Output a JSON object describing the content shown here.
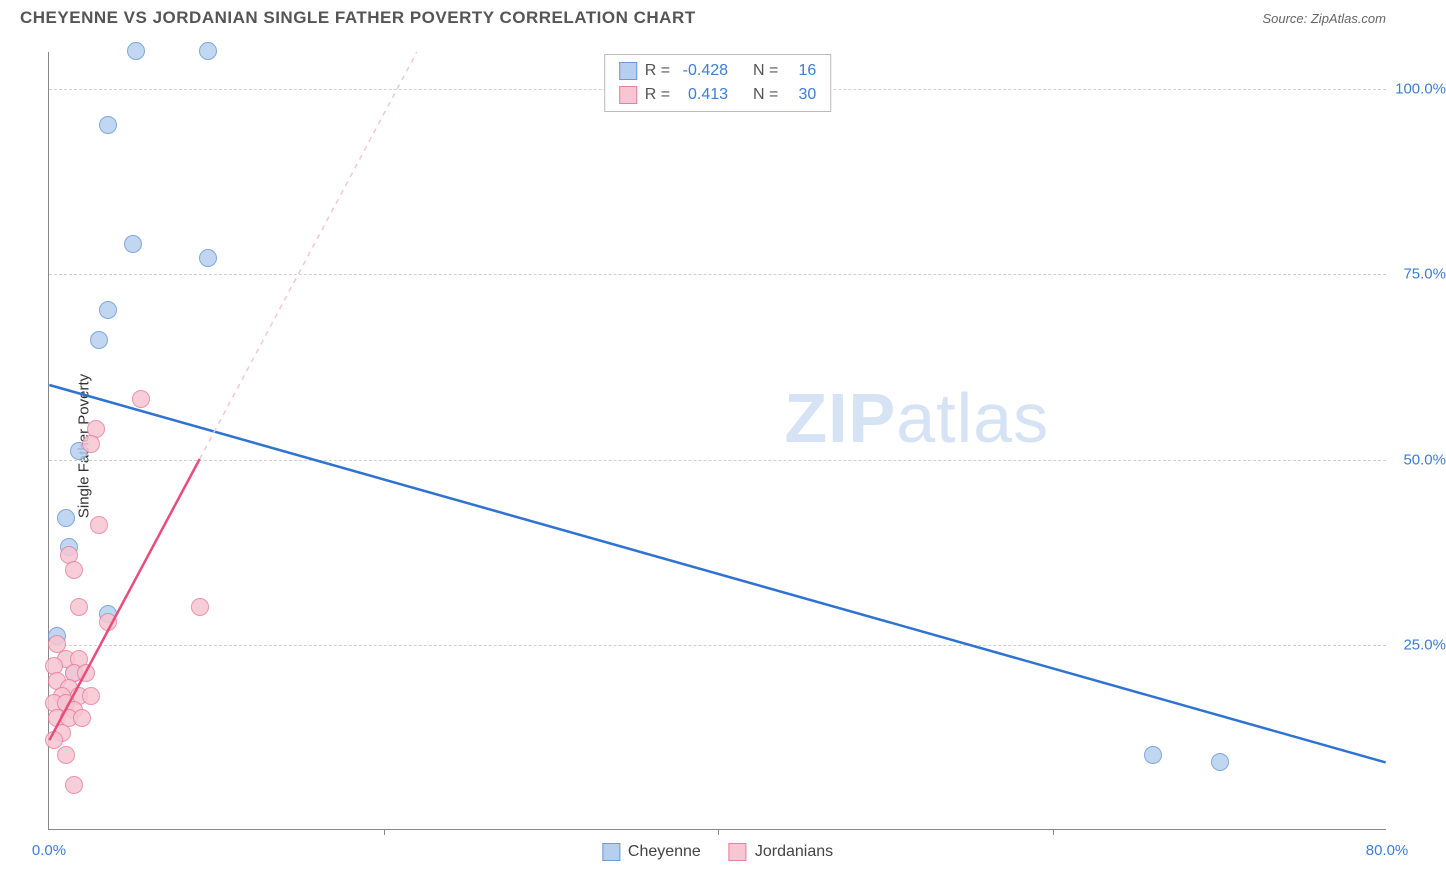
{
  "header": {
    "title": "CHEYENNE VS JORDANIAN SINGLE FATHER POVERTY CORRELATION CHART",
    "source_prefix": "Source: ",
    "source_name": "ZipAtlas.com"
  },
  "chart": {
    "type": "scatter",
    "y_axis_label": "Single Father Poverty",
    "background_color": "#ffffff",
    "grid_color": "#d0d0d0",
    "axis_color": "#888888",
    "xlim": [
      0,
      80
    ],
    "ylim": [
      0,
      105
    ],
    "y_ticks": [
      {
        "value": 25,
        "label": "25.0%"
      },
      {
        "value": 50,
        "label": "50.0%"
      },
      {
        "value": 75,
        "label": "75.0%"
      },
      {
        "value": 100,
        "label": "100.0%"
      }
    ],
    "x_ticks_minor": [
      20,
      40,
      60
    ],
    "x_ticks_labeled": [
      {
        "value": 0,
        "label": "0.0%"
      },
      {
        "value": 80,
        "label": "80.0%"
      }
    ],
    "watermark": {
      "zip": "ZIP",
      "atlas": "atlas",
      "color": "#d5e3f5"
    },
    "series": [
      {
        "name": "Cheyenne",
        "fill": "#b7cfee",
        "stroke": "#6a9ad6",
        "marker_radius": 9,
        "points": [
          {
            "x": 5.2,
            "y": 105
          },
          {
            "x": 9.5,
            "y": 105
          },
          {
            "x": 3.5,
            "y": 95
          },
          {
            "x": 5.0,
            "y": 79
          },
          {
            "x": 9.5,
            "y": 77
          },
          {
            "x": 3.5,
            "y": 70
          },
          {
            "x": 3.0,
            "y": 66
          },
          {
            "x": 1.8,
            "y": 51
          },
          {
            "x": 1.0,
            "y": 42
          },
          {
            "x": 1.2,
            "y": 38
          },
          {
            "x": 3.5,
            "y": 29
          },
          {
            "x": 0.5,
            "y": 26
          },
          {
            "x": 1.5,
            "y": 21
          },
          {
            "x": 1.0,
            "y": 17
          },
          {
            "x": 66,
            "y": 10
          },
          {
            "x": 70,
            "y": 9
          }
        ],
        "trend": {
          "x1": 0,
          "y1": 60,
          "x2": 80,
          "y2": 9,
          "color": "#2e72d2",
          "width": 2.5,
          "dash": "none"
        },
        "trend_ext": null
      },
      {
        "name": "Jordanians",
        "fill": "#f6c6d2",
        "stroke": "#e97fa0",
        "marker_radius": 9,
        "points": [
          {
            "x": 5.5,
            "y": 58
          },
          {
            "x": 2.8,
            "y": 54
          },
          {
            "x": 2.5,
            "y": 52
          },
          {
            "x": 3.0,
            "y": 41
          },
          {
            "x": 1.2,
            "y": 37
          },
          {
            "x": 1.5,
            "y": 35
          },
          {
            "x": 1.8,
            "y": 30
          },
          {
            "x": 9.0,
            "y": 30
          },
          {
            "x": 3.5,
            "y": 28
          },
          {
            "x": 0.5,
            "y": 25
          },
          {
            "x": 1.0,
            "y": 23
          },
          {
            "x": 1.8,
            "y": 23
          },
          {
            "x": 0.3,
            "y": 22
          },
          {
            "x": 1.5,
            "y": 21
          },
          {
            "x": 2.2,
            "y": 21
          },
          {
            "x": 0.5,
            "y": 20
          },
          {
            "x": 1.2,
            "y": 19
          },
          {
            "x": 0.8,
            "y": 18
          },
          {
            "x": 1.8,
            "y": 18
          },
          {
            "x": 2.5,
            "y": 18
          },
          {
            "x": 0.3,
            "y": 17
          },
          {
            "x": 1.0,
            "y": 17
          },
          {
            "x": 1.5,
            "y": 16
          },
          {
            "x": 0.5,
            "y": 15
          },
          {
            "x": 1.2,
            "y": 15
          },
          {
            "x": 2.0,
            "y": 15
          },
          {
            "x": 0.8,
            "y": 13
          },
          {
            "x": 0.3,
            "y": 12
          },
          {
            "x": 1.0,
            "y": 10
          },
          {
            "x": 1.5,
            "y": 6
          }
        ],
        "trend": {
          "x1": 0,
          "y1": 12,
          "x2": 9,
          "y2": 50,
          "color": "#e94b7a",
          "width": 2.5,
          "dash": "none"
        },
        "trend_ext": {
          "x1": 9,
          "y1": 50,
          "x2": 22,
          "y2": 105,
          "color": "#f6c6d2",
          "width": 1.5,
          "dash": "5,5"
        }
      }
    ],
    "stats_box": {
      "rows": [
        {
          "swatch_fill": "#b7cfee",
          "swatch_stroke": "#6a9ad6",
          "r_label": "R =",
          "r_value": "-0.428",
          "n_label": "N =",
          "n_value": "16"
        },
        {
          "swatch_fill": "#f6c6d2",
          "swatch_stroke": "#e97fa0",
          "r_label": "R =",
          "r_value": "0.413",
          "n_label": "N =",
          "n_value": "30"
        }
      ]
    },
    "legend": [
      {
        "swatch_fill": "#b7cfee",
        "swatch_stroke": "#6a9ad6",
        "label": "Cheyenne"
      },
      {
        "swatch_fill": "#f6c6d2",
        "swatch_stroke": "#e97fa0",
        "label": "Jordanians"
      }
    ]
  }
}
